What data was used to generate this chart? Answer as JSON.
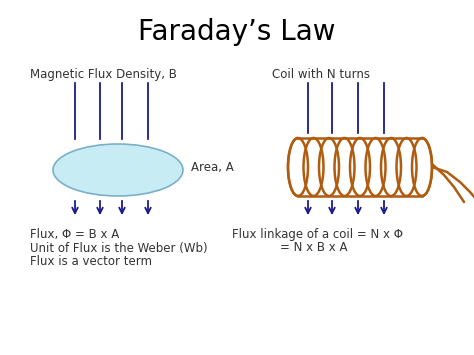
{
  "title": "Faraday’s Law",
  "title_fontsize": 20,
  "bg_color": "#ffffff",
  "text_color": "#000000",
  "label_color": "#333333",
  "arrow_color": "#1a1a8c",
  "ellipse_face": "#c8ecf4",
  "ellipse_edge": "#7ab0c8",
  "coil_color": "#b05c10",
  "label_mag": "Magnetic Flux Density, B",
  "label_coil": "Coil with N turns",
  "label_area": "Area, A",
  "label_flux": "Flux, Φ = B x A",
  "label_unit1": "Unit of Flux is the Weber (Wb)",
  "label_unit2": "Flux is a vector term",
  "label_linkage1": "Flux linkage of a coil = N x Φ",
  "label_linkage2": "= N x B x A",
  "font_size_small": 8.5
}
